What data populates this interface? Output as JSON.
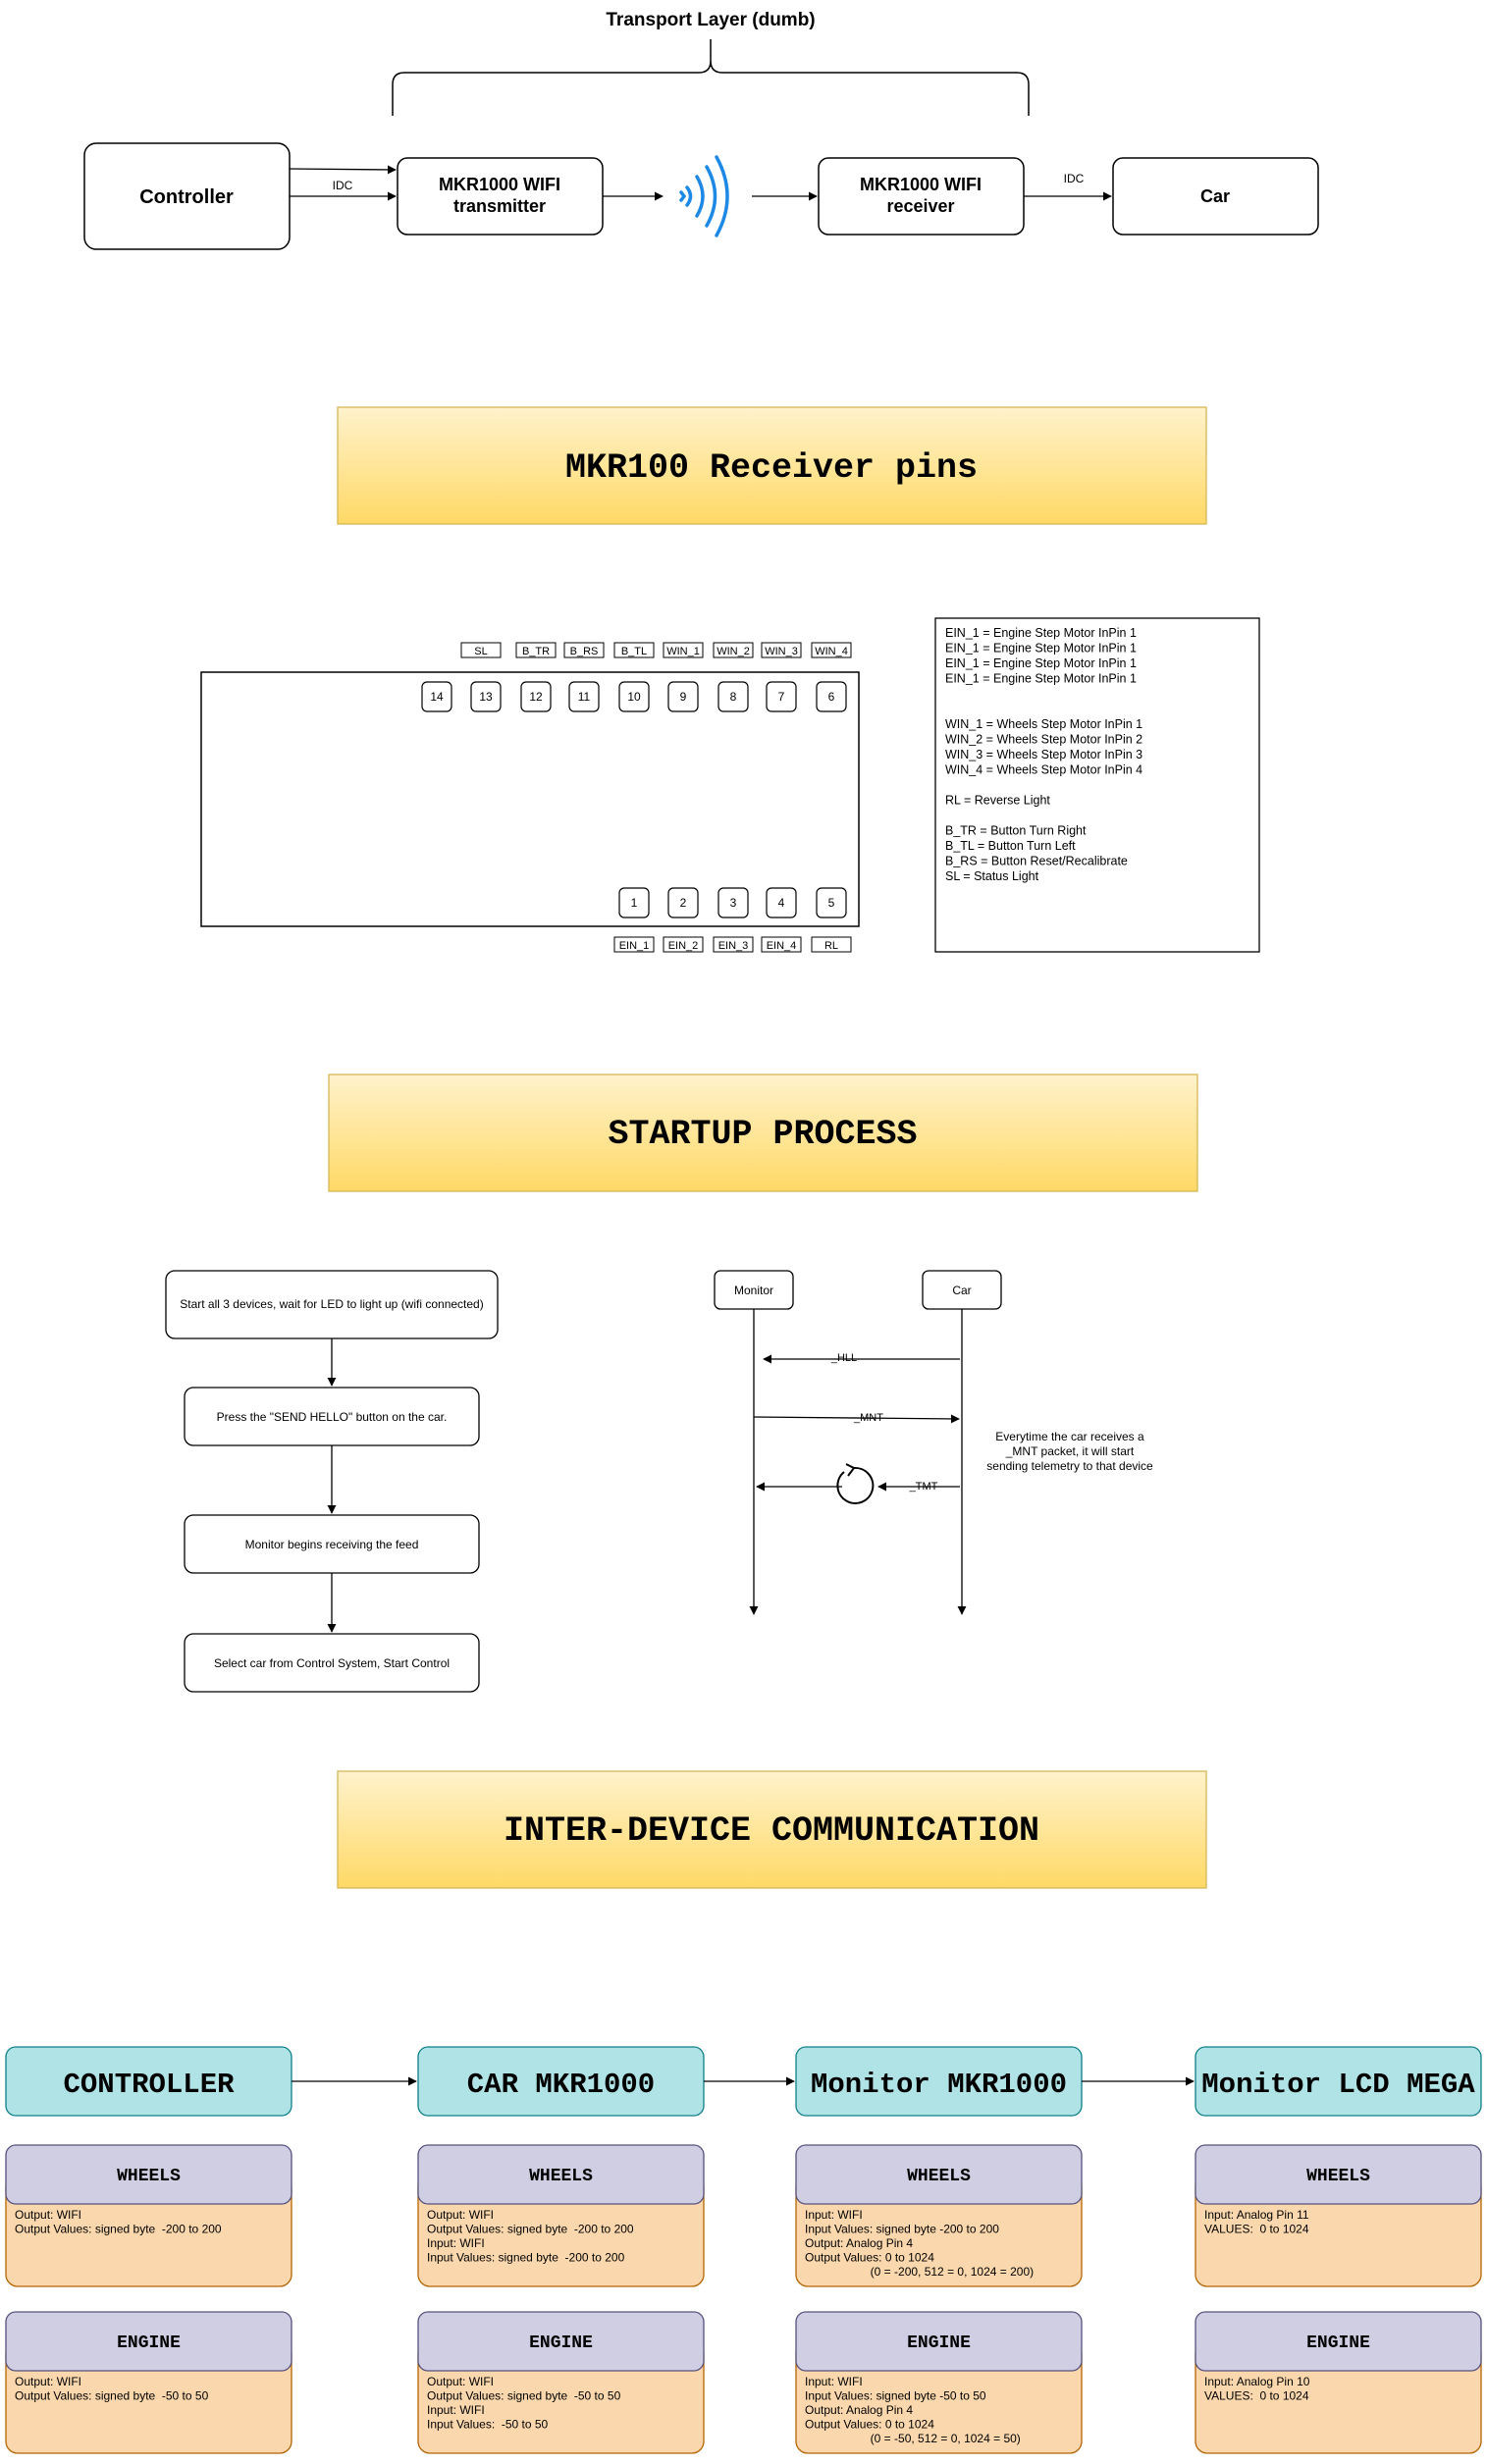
{
  "transport": {
    "title": "Transport Layer (dumb)",
    "controller": "Controller",
    "transmitter": [
      "MKR1000 WIFI",
      "transmitter"
    ],
    "receiver": [
      "MKR1000 WIFI",
      "receiver"
    ],
    "car": "Car",
    "idc_left": "IDC",
    "idc_right": "IDC"
  },
  "sections": {
    "receiver_pins": "MKR100 Receiver pins",
    "startup": "STARTUP PROCESS",
    "inter_device": "INTER-DEVICE COMMUNICATION"
  },
  "pins": {
    "top_labels": [
      "SL",
      "B_TR",
      "B_RS",
      "B_TL",
      "WIN_1",
      "WIN_2",
      "WIN_3",
      "WIN_4"
    ],
    "top_numbers": [
      "14",
      "13",
      "12",
      "11",
      "10",
      "9",
      "8",
      "7",
      "6"
    ],
    "bottom_numbers": [
      "1",
      "2",
      "3",
      "4",
      "5"
    ],
    "bottom_labels": [
      "EIN_1",
      "EIN_2",
      "EIN_3",
      "EIN_4",
      "RL"
    ]
  },
  "legend": {
    "lines": [
      "EIN_1 = Engine Step Motor InPin 1",
      "EIN_1 = Engine Step Motor InPin 1",
      "EIN_1 = Engine Step Motor InPin 1",
      "EIN_1 = Engine Step Motor InPin 1",
      "",
      "",
      "WIN_1 = Wheels Step Motor InPin 1",
      "WIN_2 = Wheels Step Motor InPin 2",
      "WIN_3 = Wheels Step Motor InPin 3",
      "WIN_4 = Wheels Step Motor InPin 4",
      "",
      "RL = Reverse Light",
      "",
      "B_TR = Button Turn Right",
      "B_TL = Button Turn Left",
      "B_RS = Button Reset/Recalibrate",
      "SL = Status Light"
    ]
  },
  "startup": {
    "steps": [
      "Start all 3 devices, wait for LED to light up (wifi connected)",
      "Press the \"SEND HELLO\" button on the car.",
      "Monitor begins receiving the feed",
      "Select car from Control System, Start Control"
    ],
    "sequence": {
      "monitor": "Monitor",
      "car": "Car",
      "msg_hll": "_HLL",
      "msg_mnt": "_MNT",
      "msg_tmt": "_TMT",
      "note": [
        "Everytime the car receives a",
        "_MNT packet, it will start",
        "sending telemetry to that device"
      ]
    }
  },
  "devices": [
    {
      "name": "CONTROLLER",
      "wheels": {
        "title": "WHEELS",
        "lines": [
          "Output: WIFI",
          "Output Values: signed byte  -200 to 200"
        ]
      },
      "engine": {
        "title": "ENGINE",
        "lines": [
          "Output: WIFI",
          "Output Values: signed byte  -50 to 50"
        ]
      }
    },
    {
      "name": "CAR MKR1000",
      "wheels": {
        "title": "WHEELS",
        "lines": [
          "Output: WIFI",
          "Output Values: signed byte  -200 to 200",
          "Input: WIFI",
          "Input Values: signed byte  -200 to 200"
        ]
      },
      "engine": {
        "title": "ENGINE",
        "lines": [
          "Output: WIFI",
          "Output Values: signed byte  -50 to 50",
          "Input: WIFI",
          "Input Values:  -50 to 50"
        ]
      }
    },
    {
      "name": "Monitor MKR1000",
      "wheels": {
        "title": "WHEELS",
        "lines": [
          "Input: WIFI",
          "Input Values: signed byte -200 to 200",
          "Output: Analog Pin 4",
          "Output Values: 0 to 1024",
          "                    (0 = -200, 512 = 0, 1024 = 200)"
        ]
      },
      "engine": {
        "title": "ENGINE",
        "lines": [
          "Input: WIFI",
          "Input Values: signed byte -50 to 50",
          "Output: Analog Pin 4",
          "Output Values: 0 to 1024",
          "                    (0 = -50, 512 = 0, 1024 = 50)"
        ]
      }
    },
    {
      "name": "Monitor LCD MEGA",
      "wheels": {
        "title": "WHEELS",
        "lines": [
          "Input: Analog Pin 11",
          "VALUES:  0 to 1024"
        ]
      },
      "engine": {
        "title": "ENGINE",
        "lines": [
          "Input: Analog Pin 10",
          "VALUES:  0 to 1024"
        ]
      }
    }
  ],
  "colors": {
    "header_gradient_top": "#fff2cc",
    "header_gradient_bottom": "#ffd966",
    "header_border": "#d6b656",
    "device_fill": "#b0e3e6",
    "device_border": "#0e8088",
    "section_fill": "#d0cee2",
    "section_border": "#56517e",
    "content_fill": "#fad7ac",
    "content_border": "#b46504",
    "wifi_blue": "#1e88e5"
  }
}
